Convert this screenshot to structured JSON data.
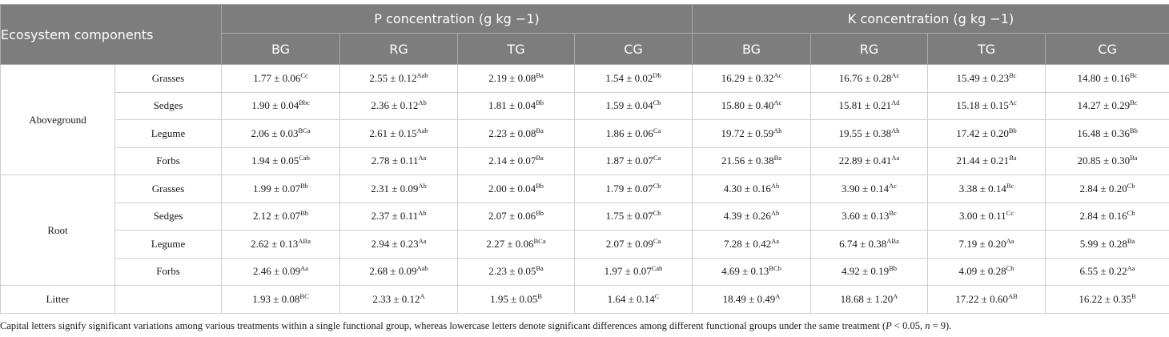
{
  "header": {
    "ecosystem": "Ecosystem components",
    "p_group": "P concentration (g kg −1)",
    "k_group": "K concentration (g kg −1)",
    "treatments": [
      "BG",
      "RG",
      "TG",
      "CG"
    ]
  },
  "groups": [
    {
      "name": "Aboveground",
      "rows": [
        {
          "sub": "Grasses",
          "p": [
            {
              "v": "1.77 ± 0.06",
              "s": "Cc"
            },
            {
              "v": "2.55 ± 0.12",
              "s": "Aab"
            },
            {
              "v": "2.19 ± 0.08",
              "s": "Ba"
            },
            {
              "v": "1.54 ± 0.02",
              "s": "Db"
            }
          ],
          "k": [
            {
              "v": "16.29 ± 0.32",
              "s": "Ac"
            },
            {
              "v": "16.76 ± 0.28",
              "s": "Ac"
            },
            {
              "v": "15.49 ± 0.23",
              "s": "Bc"
            },
            {
              "v": "14.80 ± 0.16",
              "s": "Bc"
            }
          ]
        },
        {
          "sub": "Sedges",
          "p": [
            {
              "v": "1.90 ± 0.04",
              "s": "Bbc"
            },
            {
              "v": "2.36 ± 0.12",
              "s": "Ab"
            },
            {
              "v": "1.81 ± 0.04",
              "s": "Bb"
            },
            {
              "v": "1.59 ± 0.04",
              "s": "Cb"
            }
          ],
          "k": [
            {
              "v": "15.80 ± 0.40",
              "s": "Ac"
            },
            {
              "v": "15.81 ± 0.21",
              "s": "Ad"
            },
            {
              "v": "15.18 ± 0.15",
              "s": "Ac"
            },
            {
              "v": "14.27 ± 0.29",
              "s": "Bc"
            }
          ]
        },
        {
          "sub": "Legume",
          "p": [
            {
              "v": "2.06 ± 0.03",
              "s": "BCa"
            },
            {
              "v": "2.61 ± 0.15",
              "s": "Aab"
            },
            {
              "v": "2.23 ± 0.08",
              "s": "Ba"
            },
            {
              "v": "1.86 ± 0.06",
              "s": "Ca"
            }
          ],
          "k": [
            {
              "v": "19.72 ± 0.59",
              "s": "Ab"
            },
            {
              "v": "19.55 ± 0.38",
              "s": "Ab"
            },
            {
              "v": "17.42 ± 0.20",
              "s": "Bb"
            },
            {
              "v": "16.48 ± 0.36",
              "s": "Bb"
            }
          ]
        },
        {
          "sub": "Forbs",
          "p": [
            {
              "v": "1.94 ± 0.05",
              "s": "Cab"
            },
            {
              "v": "2.78 ± 0.11",
              "s": "Aa"
            },
            {
              "v": "2.14 ± 0.07",
              "s": "Ba"
            },
            {
              "v": "1.87 ± 0.07",
              "s": "Ca"
            }
          ],
          "k": [
            {
              "v": "21.56 ± 0.38",
              "s": "Ba"
            },
            {
              "v": "22.89 ± 0.41",
              "s": "Aa"
            },
            {
              "v": "21.44 ± 0.21",
              "s": "Ba"
            },
            {
              "v": "20.85 ± 0.30",
              "s": "Ba"
            }
          ]
        }
      ]
    },
    {
      "name": "Root",
      "rows": [
        {
          "sub": "Grasses",
          "p": [
            {
              "v": "1.99 ± 0.07",
              "s": "Bb"
            },
            {
              "v": "2.31 ± 0.09",
              "s": "Ab"
            },
            {
              "v": "2.00 ± 0.04",
              "s": "Bb"
            },
            {
              "v": "1.79 ± 0.07",
              "s": "Cb"
            }
          ],
          "k": [
            {
              "v": "4.30 ± 0.16",
              "s": "Ab"
            },
            {
              "v": "3.90 ± 0.14",
              "s": "Ac"
            },
            {
              "v": "3.38 ± 0.14",
              "s": "Bc"
            },
            {
              "v": "2.84 ± 0.20",
              "s": "Cb"
            }
          ]
        },
        {
          "sub": "Sedges",
          "p": [
            {
              "v": "2.12 ± 0.07",
              "s": "Bb"
            },
            {
              "v": "2.37 ± 0.11",
              "s": "Ab"
            },
            {
              "v": "2.07 ± 0.06",
              "s": "Bb"
            },
            {
              "v": "1.75 ± 0.07",
              "s": "Cb"
            }
          ],
          "k": [
            {
              "v": "4.39 ± 0.26",
              "s": "Ab"
            },
            {
              "v": "3.60 ± 0.13",
              "s": "Bc"
            },
            {
              "v": "3.00 ± 0.11",
              "s": "Cc"
            },
            {
              "v": "2.84 ± 0.16",
              "s": "Cb"
            }
          ]
        },
        {
          "sub": "Legume",
          "p": [
            {
              "v": "2.62 ± 0.13",
              "s": "ABa"
            },
            {
              "v": "2.94 ± 0.23",
              "s": "Aa"
            },
            {
              "v": "2.27 ± 0.06",
              "s": "BCa"
            },
            {
              "v": "2.07 ± 0.09",
              "s": "Ca"
            }
          ],
          "k": [
            {
              "v": "7.28 ± 0.42",
              "s": "Aa"
            },
            {
              "v": "6.74 ± 0.38",
              "s": "ABa"
            },
            {
              "v": "7.19 ± 0.20",
              "s": "Aa"
            },
            {
              "v": "5.99 ± 0.28",
              "s": "Ba"
            }
          ]
        },
        {
          "sub": "Forbs",
          "p": [
            {
              "v": "2.46 ± 0.09",
              "s": "Aa"
            },
            {
              "v": "2.68 ± 0.09",
              "s": "Aab"
            },
            {
              "v": "2.23 ± 0.05",
              "s": "Ba"
            },
            {
              "v": "1.97 ± 0.07",
              "s": "Cab"
            }
          ],
          "k": [
            {
              "v": "4.69 ± 0.13",
              "s": "BCb"
            },
            {
              "v": "4.92 ± 0.19",
              "s": "Bb"
            },
            {
              "v": "4.09 ± 0.28",
              "s": "Cb"
            },
            {
              "v": "6.55 ± 0.22",
              "s": "Aa"
            }
          ]
        }
      ]
    },
    {
      "name": "Litter",
      "rows": [
        {
          "sub": "",
          "p": [
            {
              "v": "1.93 ± 0.08",
              "s": "BC"
            },
            {
              "v": "2.33 ± 0.12",
              "s": "A"
            },
            {
              "v": "1.95 ± 0.05",
              "s": "B"
            },
            {
              "v": "1.64 ± 0.14",
              "s": "C"
            }
          ],
          "k": [
            {
              "v": "18.49 ± 0.49",
              "s": "A"
            },
            {
              "v": "18.68 ± 1.20",
              "s": "A"
            },
            {
              "v": "17.22 ± 0.60",
              "s": "AB"
            },
            {
              "v": "16.22 ± 0.35",
              "s": "B"
            }
          ]
        }
      ]
    }
  ],
  "footnote": {
    "text": "Capital letters signify significant variations among various treatments within a single functional group, whereas lowercase letters denote significant differences among different functional groups under the same treatment (",
    "p_label": "P",
    "p_text": " < 0.05, ",
    "n_label": "n",
    "n_text": " = 9)."
  }
}
